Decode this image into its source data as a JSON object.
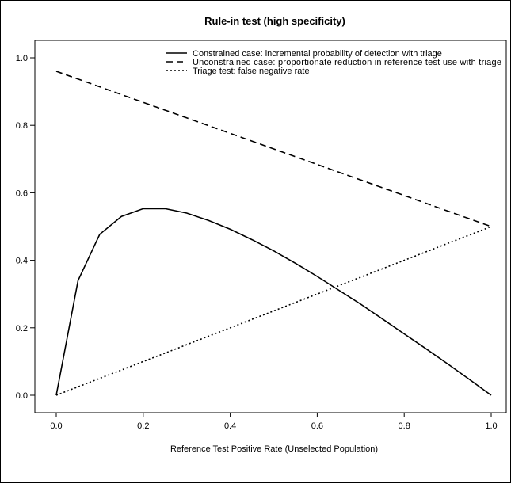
{
  "chart_data": {
    "type": "line",
    "title": "Rule-in test (high specificity)",
    "xlabel": "Reference Test Positive Rate (Unselected Population)",
    "ylabel": "",
    "xlim": [
      0,
      1
    ],
    "ylim": [
      0,
      1
    ],
    "xticks": [
      "0.0",
      "0.2",
      "0.4",
      "0.6",
      "0.8",
      "1.0"
    ],
    "yticks": [
      "0.0",
      "0.2",
      "0.4",
      "0.6",
      "0.8",
      "1.0"
    ],
    "grid": false,
    "legend_position": "top-right",
    "series": [
      {
        "name": "Constrained case: incremental probability of detection with triage",
        "style": "solid",
        "x": [
          0.0,
          0.05,
          0.1,
          0.15,
          0.2,
          0.25,
          0.3,
          0.35,
          0.4,
          0.45,
          0.5,
          0.55,
          0.6,
          0.65,
          0.7,
          0.75,
          0.8,
          0.85,
          0.9,
          0.95,
          1.0
        ],
        "y": [
          0.0,
          0.34,
          0.477,
          0.53,
          0.553,
          0.553,
          0.54,
          0.518,
          0.492,
          0.461,
          0.428,
          0.391,
          0.352,
          0.311,
          0.27,
          0.226,
          0.182,
          0.138,
          0.093,
          0.047,
          0.0
        ]
      },
      {
        "name": "Unconstrained case: proportionate reduction in reference test use with triage",
        "style": "dashed",
        "x": [
          0.0,
          1.0
        ],
        "y": [
          0.96,
          0.5
        ]
      },
      {
        "name": "Triage test: false negative rate",
        "style": "dotted",
        "x": [
          0.0,
          1.0
        ],
        "y": [
          0.0,
          0.5
        ]
      }
    ]
  }
}
